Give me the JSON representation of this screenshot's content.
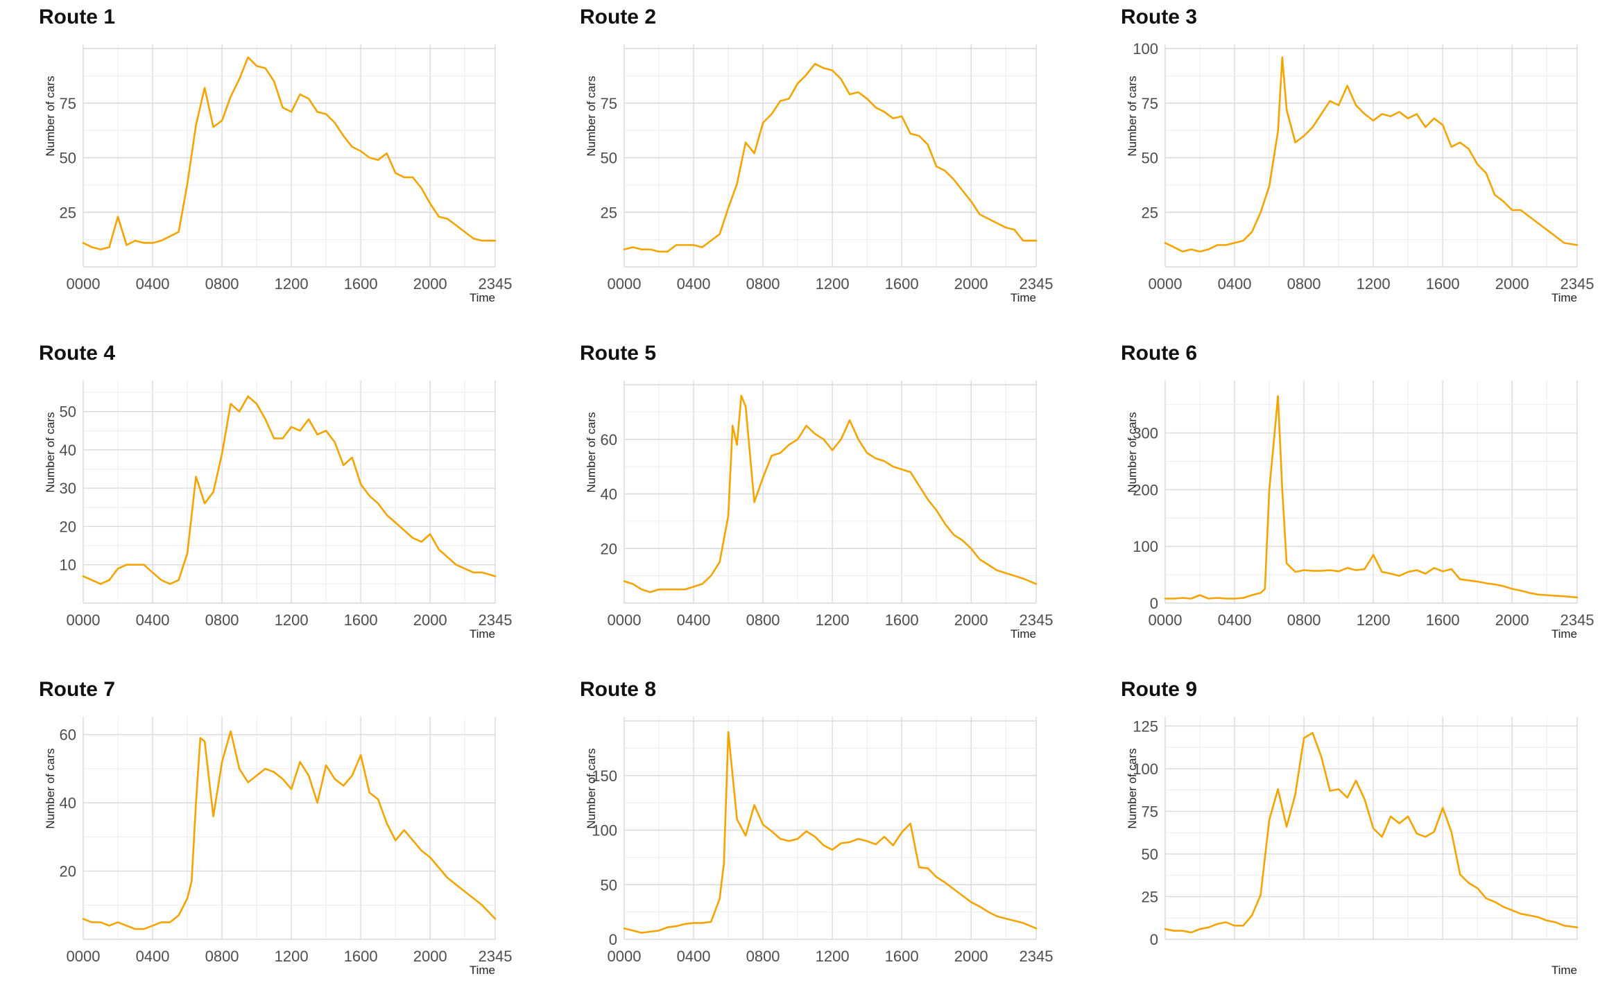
{
  "colors": {
    "line": "#f5a300",
    "grid": "#d9d9d9",
    "text": "#4d4d4d"
  },
  "chart_data": [
    {
      "type": "line",
      "title": "Route 1",
      "xlabel": "Time",
      "ylabel": "Number of cars",
      "x_ticks": [
        "0000",
        "0400",
        "0800",
        "1200",
        "1600",
        "2000",
        "2345"
      ],
      "y_ticks": [
        25,
        50,
        75
      ],
      "xlim": [
        0,
        23.75
      ],
      "ylim": [
        0,
        100
      ],
      "x": [
        0,
        0.5,
        1,
        1.5,
        2,
        2.5,
        3,
        3.5,
        4,
        4.5,
        5,
        5.5,
        6,
        6.5,
        7,
        7.5,
        8,
        8.5,
        9,
        9.5,
        10,
        10.5,
        11,
        11.5,
        12,
        12.5,
        13,
        13.5,
        14,
        14.5,
        15,
        15.5,
        16,
        16.5,
        17,
        17.5,
        18,
        18.5,
        19,
        19.5,
        20,
        20.5,
        21,
        21.5,
        22,
        22.5,
        23,
        23.75
      ],
      "values": [
        11,
        9,
        8,
        9,
        23,
        10,
        12,
        11,
        11,
        12,
        14,
        16,
        38,
        65,
        82,
        64,
        67,
        78,
        86,
        96,
        92,
        91,
        85,
        73,
        71,
        79,
        77,
        71,
        70,
        66,
        60,
        55,
        53,
        50,
        49,
        52,
        43,
        41,
        41,
        36,
        29,
        23,
        22,
        19,
        16,
        13,
        12,
        12
      ]
    },
    {
      "type": "line",
      "title": "Route 2",
      "xlabel": "Time",
      "ylabel": "Number of cars",
      "x_ticks": [
        "0000",
        "0400",
        "0800",
        "1200",
        "1600",
        "2000",
        "2345"
      ],
      "y_ticks": [
        25,
        50,
        75
      ],
      "xlim": [
        0,
        23.75
      ],
      "ylim": [
        0,
        100
      ],
      "x": [
        0,
        0.5,
        1,
        1.5,
        2,
        2.5,
        3,
        3.5,
        4,
        4.5,
        5,
        5.5,
        6,
        6.5,
        7,
        7.5,
        8,
        8.5,
        9,
        9.5,
        10,
        10.5,
        11,
        11.5,
        12,
        12.5,
        13,
        13.5,
        14,
        14.5,
        15,
        15.5,
        16,
        16.5,
        17,
        17.5,
        18,
        18.5,
        19,
        19.5,
        20,
        20.5,
        21,
        21.5,
        22,
        22.5,
        23,
        23.75
      ],
      "values": [
        8,
        9,
        8,
        8,
        7,
        7,
        10,
        10,
        10,
        9,
        12,
        15,
        27,
        38,
        57,
        52,
        66,
        70,
        76,
        77,
        84,
        88,
        93,
        91,
        90,
        86,
        79,
        80,
        77,
        73,
        71,
        68,
        69,
        61,
        60,
        56,
        46,
        44,
        40,
        35,
        30,
        24,
        22,
        20,
        18,
        17,
        12,
        12
      ]
    },
    {
      "type": "line",
      "title": "Route 3",
      "xlabel": "Time",
      "ylabel": "Number of cars",
      "x_ticks": [
        "0000",
        "0400",
        "0800",
        "1200",
        "1600",
        "2000",
        "2345"
      ],
      "y_ticks": [
        25,
        50,
        75,
        100
      ],
      "xlim": [
        0,
        23.75
      ],
      "ylim": [
        0,
        100
      ],
      "x": [
        0,
        0.5,
        1,
        1.5,
        2,
        2.5,
        3,
        3.5,
        4,
        4.5,
        5,
        5.5,
        6,
        6.5,
        6.75,
        7,
        7.5,
        8,
        8.5,
        9,
        9.5,
        10,
        10.5,
        11,
        11.5,
        12,
        12.5,
        13,
        13.5,
        14,
        14.5,
        15,
        15.5,
        16,
        16.5,
        17,
        17.5,
        18,
        18.5,
        19,
        19.5,
        20,
        20.5,
        21,
        21.5,
        22,
        22.5,
        23,
        23.75
      ],
      "values": [
        11,
        9,
        7,
        8,
        7,
        8,
        10,
        10,
        11,
        12,
        16,
        25,
        37,
        62,
        96,
        72,
        57,
        60,
        64,
        70,
        76,
        74,
        83,
        74,
        70,
        67,
        70,
        69,
        71,
        68,
        70,
        64,
        68,
        65,
        55,
        57,
        54,
        47,
        43,
        33,
        30,
        26,
        26,
        23,
        20,
        17,
        14,
        11,
        10
      ]
    },
    {
      "type": "line",
      "title": "Route 4",
      "xlabel": "Time",
      "ylabel": "Number of cars",
      "x_ticks": [
        "0000",
        "0400",
        "0800",
        "1200",
        "1600",
        "2000",
        "2345"
      ],
      "y_ticks": [
        10,
        20,
        30,
        40,
        50
      ],
      "xlim": [
        0,
        23.75
      ],
      "ylim": [
        0,
        57
      ],
      "x": [
        0,
        0.5,
        1,
        1.5,
        2,
        2.5,
        3,
        3.5,
        4,
        4.5,
        5,
        5.5,
        6,
        6.5,
        7,
        7.5,
        8,
        8.5,
        9,
        9.5,
        10,
        10.5,
        11,
        11.5,
        12,
        12.5,
        13,
        13.5,
        14,
        14.5,
        15,
        15.5,
        16,
        16.5,
        17,
        17.5,
        18,
        18.5,
        19,
        19.5,
        20,
        20.5,
        21,
        21.5,
        22,
        22.5,
        23,
        23.75
      ],
      "values": [
        7,
        6,
        5,
        6,
        9,
        10,
        10,
        10,
        8,
        6,
        5,
        6,
        13,
        33,
        26,
        29,
        39,
        52,
        50,
        54,
        52,
        48,
        43,
        43,
        46,
        45,
        48,
        44,
        45,
        42,
        36,
        38,
        31,
        28,
        26,
        23,
        21,
        19,
        17,
        16,
        18,
        14,
        12,
        10,
        9,
        8,
        8,
        7
      ]
    },
    {
      "type": "line",
      "title": "Route 5",
      "xlabel": "Time",
      "ylabel": "Number of cars",
      "x_ticks": [
        "0000",
        "0400",
        "0800",
        "1200",
        "1600",
        "2000",
        "2345"
      ],
      "y_ticks": [
        20,
        40,
        60
      ],
      "xlim": [
        0,
        23.75
      ],
      "ylim": [
        0,
        80
      ],
      "x": [
        0,
        0.5,
        1,
        1.5,
        2,
        2.5,
        3,
        3.5,
        4,
        4.5,
        5,
        5.5,
        6,
        6.25,
        6.5,
        6.75,
        7,
        7.5,
        8,
        8.5,
        9,
        9.5,
        10,
        10.5,
        11,
        11.5,
        12,
        12.5,
        13,
        13.5,
        14,
        14.5,
        15,
        15.5,
        16,
        16.5,
        17,
        17.5,
        18,
        18.5,
        19,
        19.5,
        20,
        20.5,
        21,
        21.5,
        22,
        22.5,
        23,
        23.75
      ],
      "values": [
        8,
        7,
        5,
        4,
        5,
        5,
        5,
        5,
        6,
        7,
        10,
        15,
        32,
        65,
        58,
        76,
        72,
        37,
        46,
        54,
        55,
        58,
        60,
        65,
        62,
        60,
        56,
        60,
        67,
        60,
        55,
        53,
        52,
        50,
        49,
        48,
        43,
        38,
        34,
        29,
        25,
        23,
        20,
        16,
        14,
        12,
        11,
        10,
        9,
        7
      ]
    },
    {
      "type": "line",
      "title": "Route 6",
      "xlabel": "Time",
      "ylabel": "Number of cars",
      "x_ticks": [
        "0000",
        "0400",
        "0800",
        "1200",
        "1600",
        "2000",
        "2345"
      ],
      "y_ticks": [
        0,
        100,
        200,
        300
      ],
      "xlim": [
        0,
        23.75
      ],
      "ylim": [
        0,
        385
      ],
      "x": [
        0,
        0.5,
        1,
        1.5,
        2,
        2.5,
        3,
        3.5,
        4,
        4.5,
        5,
        5.5,
        5.75,
        6,
        6.25,
        6.5,
        6.75,
        7,
        7.5,
        8,
        8.5,
        9,
        9.5,
        10,
        10.5,
        11,
        11.5,
        12,
        12.5,
        13,
        13.5,
        14,
        14.5,
        15,
        15.5,
        16,
        16.5,
        17,
        17.5,
        18,
        18.5,
        19,
        19.5,
        20,
        20.5,
        21,
        21.5,
        22,
        22.5,
        23,
        23.75
      ],
      "values": [
        8,
        8,
        9,
        8,
        14,
        8,
        9,
        8,
        8,
        9,
        14,
        18,
        25,
        200,
        280,
        365,
        200,
        70,
        55,
        58,
        57,
        57,
        58,
        56,
        62,
        58,
        60,
        85,
        55,
        52,
        48,
        55,
        58,
        52,
        62,
        56,
        60,
        42,
        40,
        38,
        35,
        33,
        30,
        25,
        22,
        18,
        15,
        14,
        13,
        12,
        10
      ]
    },
    {
      "type": "line",
      "title": "Route 7",
      "xlabel": "Time",
      "ylabel": "Number of cars",
      "x_ticks": [
        "0000",
        "0400",
        "0800",
        "1200",
        "1600",
        "2000",
        "2345"
      ],
      "y_ticks": [
        20,
        40,
        60
      ],
      "xlim": [
        0,
        23.75
      ],
      "ylim": [
        0,
        64
      ],
      "x": [
        0,
        0.5,
        1,
        1.5,
        2,
        2.5,
        3,
        3.5,
        4,
        4.5,
        5,
        5.5,
        6,
        6.25,
        6.5,
        6.75,
        7,
        7.5,
        8,
        8.5,
        9,
        9.5,
        10,
        10.5,
        11,
        11.5,
        12,
        12.5,
        13,
        13.5,
        14,
        14.5,
        15,
        15.5,
        16,
        16.5,
        17,
        17.5,
        18,
        18.5,
        19,
        19.5,
        20,
        20.5,
        21,
        21.5,
        22,
        22.5,
        23,
        23.75
      ],
      "values": [
        6,
        5,
        5,
        4,
        5,
        4,
        3,
        3,
        4,
        5,
        5,
        7,
        12,
        17,
        40,
        59,
        58,
        36,
        52,
        61,
        50,
        46,
        48,
        50,
        49,
        47,
        44,
        52,
        48,
        40,
        51,
        47,
        45,
        48,
        54,
        43,
        41,
        34,
        29,
        32,
        29,
        26,
        24,
        21,
        18,
        16,
        14,
        12,
        10,
        6
      ]
    },
    {
      "type": "line",
      "title": "Route 8",
      "xlabel": "",
      "ylabel": "Number of cars",
      "x_ticks": [
        "0000",
        "0400",
        "0800",
        "1200",
        "1600",
        "2000",
        "2345"
      ],
      "y_ticks": [
        0,
        50,
        100,
        150
      ],
      "xlim": [
        0,
        23.75
      ],
      "ylim": [
        0,
        200
      ],
      "x": [
        0,
        0.5,
        1,
        1.5,
        2,
        2.5,
        3,
        3.5,
        4,
        4.5,
        5,
        5.5,
        5.75,
        6,
        6.25,
        6.5,
        7,
        7.5,
        8,
        8.5,
        9,
        9.5,
        10,
        10.5,
        11,
        11.5,
        12,
        12.5,
        13,
        13.5,
        14,
        14.5,
        15,
        15.5,
        16,
        16.5,
        17,
        17.5,
        18,
        18.5,
        19,
        19.5,
        20,
        20.5,
        21,
        21.5,
        22,
        22.5,
        23,
        23.75
      ],
      "values": [
        10,
        8,
        6,
        7,
        8,
        11,
        12,
        14,
        15,
        15,
        16,
        37,
        70,
        190,
        150,
        110,
        95,
        123,
        105,
        99,
        92,
        90,
        92,
        99,
        94,
        86,
        82,
        88,
        89,
        92,
        90,
        87,
        94,
        86,
        98,
        106,
        66,
        65,
        57,
        52,
        46,
        40,
        34,
        30,
        25,
        21,
        19,
        17,
        15,
        10
      ]
    },
    {
      "type": "line",
      "title": "Route 9",
      "xlabel": "Time",
      "ylabel": "Number of cars",
      "x_ticks": [],
      "y_ticks": [
        0,
        25,
        50,
        75,
        100,
        125
      ],
      "xlim": [
        0,
        23.75
      ],
      "ylim": [
        0,
        128
      ],
      "x": [
        0,
        0.5,
        1,
        1.5,
        2,
        2.5,
        3,
        3.5,
        4,
        4.5,
        5,
        5.5,
        6,
        6.5,
        7,
        7.5,
        8,
        8.5,
        9,
        9.5,
        10,
        10.5,
        11,
        11.5,
        12,
        12.5,
        13,
        13.5,
        14,
        14.5,
        15,
        15.5,
        16,
        16.5,
        17,
        17.5,
        18,
        18.5,
        19,
        19.5,
        20,
        20.5,
        21,
        21.5,
        22,
        22.5,
        23,
        23.75
      ],
      "values": [
        6,
        5,
        5,
        4,
        6,
        7,
        9,
        10,
        8,
        8,
        14,
        26,
        70,
        88,
        66,
        85,
        118,
        121,
        107,
        87,
        88,
        83,
        93,
        82,
        65,
        60,
        72,
        68,
        72,
        62,
        60,
        63,
        77,
        63,
        38,
        33,
        30,
        24,
        22,
        19,
        17,
        15,
        14,
        13,
        11,
        10,
        8,
        7
      ]
    }
  ]
}
